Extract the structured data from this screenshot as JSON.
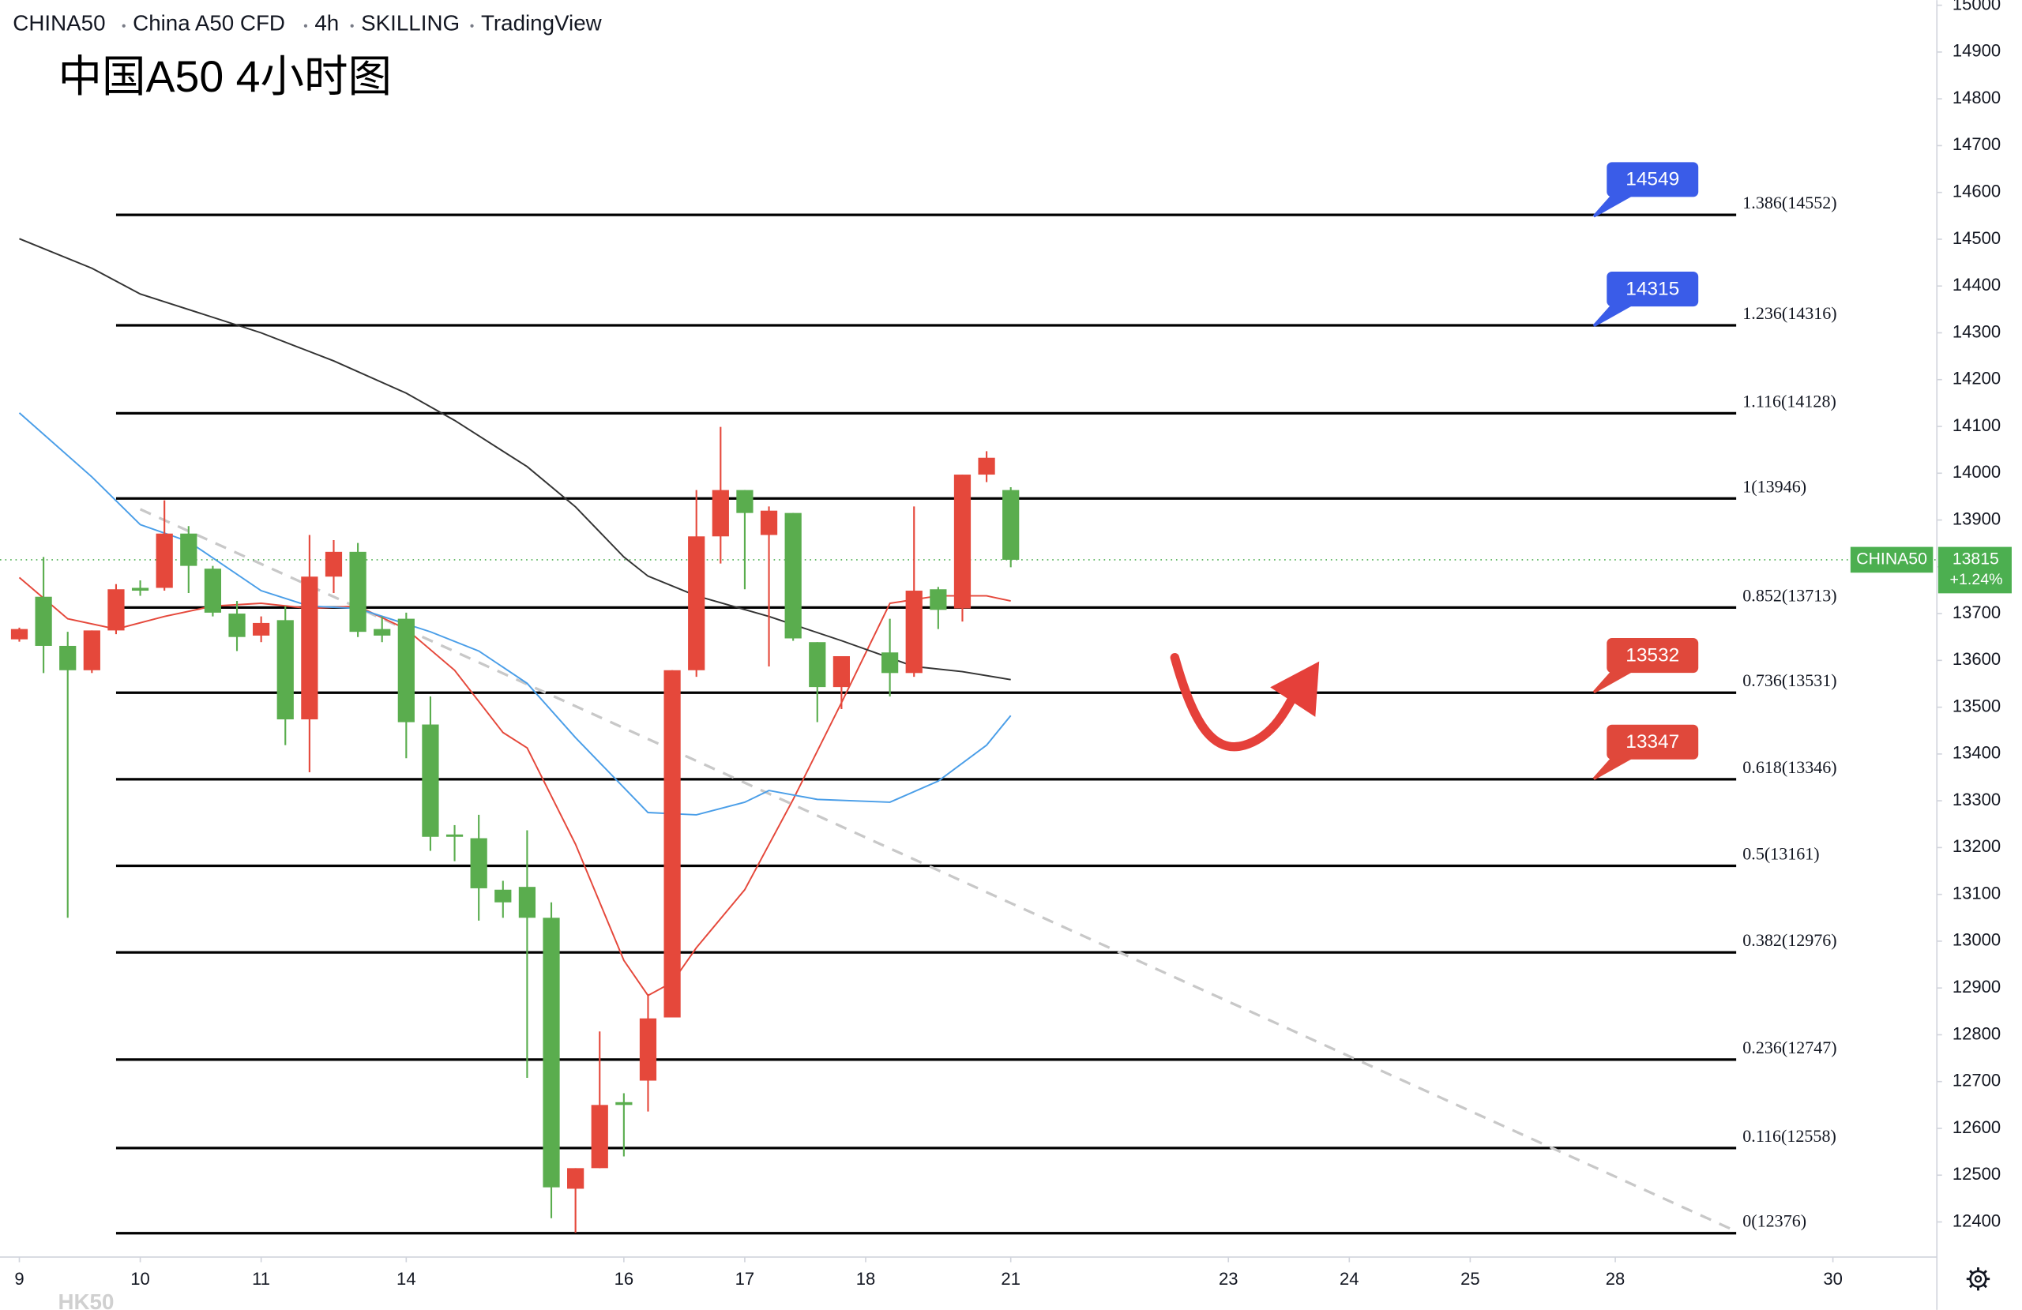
{
  "chart_data": {
    "type": "candlestick",
    "header": [
      "CHINA50",
      "China A50 CFD",
      "4h",
      "SKILLING",
      "TradingView"
    ],
    "title": "中国A50 4小时图",
    "watermark": "HK50",
    "up_color": "#e5483b",
    "down_color": "#5aad4e",
    "ylim": [
      12325,
      15011
    ],
    "yticks": [
      12400,
      12500,
      12600,
      12700,
      12800,
      12900,
      13000,
      13100,
      13200,
      13300,
      13400,
      13500,
      13600,
      13700,
      13800,
      13900,
      14000,
      14100,
      14200,
      14300,
      14400,
      14500,
      14600,
      14700,
      14800,
      14900,
      15000
    ],
    "xlim": [
      -0.8,
      79.3
    ],
    "xticks": [
      {
        "value": 0,
        "label": "9"
      },
      {
        "value": 5,
        "label": "10"
      },
      {
        "value": 10,
        "label": "11"
      },
      {
        "value": 16,
        "label": "14"
      },
      {
        "value": 25,
        "label": "16"
      },
      {
        "value": 30,
        "label": "17"
      },
      {
        "value": 35,
        "label": "18"
      },
      {
        "value": 41,
        "label": "21"
      },
      {
        "value": 50,
        "label": "23"
      },
      {
        "value": 55,
        "label": "24"
      },
      {
        "value": 60,
        "label": "25"
      },
      {
        "value": 66,
        "label": "28"
      },
      {
        "value": 75,
        "label": "30"
      }
    ],
    "candles": {
      "x": [
        0,
        1,
        2,
        3,
        4,
        5,
        6,
        7,
        8,
        9,
        10,
        11,
        12,
        13,
        14,
        15,
        16,
        17,
        18,
        19,
        20,
        21,
        22,
        23,
        24,
        25,
        26,
        27,
        28,
        29,
        30,
        31,
        32,
        33,
        34,
        36,
        37,
        38,
        39,
        40,
        41
      ],
      "open": [
        13645,
        13736,
        13631,
        13579,
        13664,
        13755,
        13755,
        13871,
        13796,
        13700,
        13653,
        13686,
        13474,
        13779,
        13832,
        13667,
        13689,
        13463,
        13228,
        13220,
        13110,
        13116,
        13050,
        12471,
        12515,
        12656,
        12702,
        12837,
        13579,
        13865,
        13964,
        13868,
        13915,
        13639,
        13543,
        13617,
        13573,
        13752,
        13711,
        13997,
        13964
      ],
      "high": [
        13670,
        13821,
        13661,
        13664,
        13763,
        13771,
        13942,
        13887,
        13802,
        13727,
        13694,
        13716,
        13868,
        13857,
        13851,
        13694,
        13702,
        13523,
        13248,
        13270,
        13129,
        13237,
        13083,
        12515,
        12807,
        12675,
        12887,
        13579,
        13964,
        14099,
        13964,
        13929,
        13915,
        13639,
        13609,
        13689,
        13929,
        13757,
        13997,
        14047,
        13970
      ],
      "low": [
        13640,
        13573,
        13050,
        13573,
        13656,
        13738,
        13749,
        13744,
        13694,
        13620,
        13639,
        13419,
        13361,
        13744,
        13650,
        13639,
        13391,
        13193,
        13171,
        13044,
        13050,
        12708,
        12408,
        12377,
        12515,
        12540,
        12636,
        12837,
        13565,
        13807,
        13752,
        13587,
        13642,
        13468,
        13496,
        13523,
        13565,
        13667,
        13683,
        13981,
        13799
      ],
      "close": [
        13667,
        13631,
        13579,
        13664,
        13752,
        13749,
        13871,
        13802,
        13702,
        13650,
        13680,
        13474,
        13779,
        13832,
        13661,
        13653,
        13468,
        13223,
        13223,
        13113,
        13083,
        13050,
        12474,
        12515,
        12650,
        12650,
        12835,
        13579,
        13865,
        13964,
        13915,
        13920,
        13647,
        13543,
        13609,
        13573,
        13749,
        13708,
        13997,
        14033,
        13815
      ]
    },
    "moving_averages": [
      {
        "color": "#e5483b",
        "x": [
          0,
          2,
          4,
          6,
          8,
          10,
          12,
          14,
          16,
          18,
          20,
          21,
          23,
          25,
          26,
          27,
          28,
          30,
          32,
          34,
          36,
          38,
          40,
          41
        ],
        "values": [
          13777,
          13689,
          13667,
          13694,
          13716,
          13722,
          13711,
          13716,
          13667,
          13579,
          13446,
          13413,
          13207,
          12959,
          12884,
          12912,
          12986,
          13110,
          13303,
          13510,
          13722,
          13738,
          13738,
          13727
        ]
      },
      {
        "color": "#4a9ee8",
        "x": [
          0,
          3,
          5,
          7,
          10,
          12,
          14,
          17,
          19,
          21,
          23,
          26,
          28,
          30,
          31,
          33,
          36,
          38,
          40,
          41
        ],
        "values": [
          14129,
          13992,
          13890,
          13854,
          13749,
          13716,
          13711,
          13661,
          13620,
          13551,
          13435,
          13275,
          13270,
          13297,
          13322,
          13303,
          13297,
          13342,
          13419,
          13482
        ]
      },
      {
        "color": "#333333",
        "x": [
          0,
          3,
          5,
          10,
          13,
          16,
          18,
          21,
          23,
          25,
          26,
          28,
          31,
          34,
          37,
          39,
          41
        ],
        "values": [
          14501,
          14438,
          14383,
          14300,
          14240,
          14171,
          14113,
          14014,
          13928,
          13821,
          13780,
          13738,
          13694,
          13642,
          13587,
          13576,
          13559
        ]
      }
    ],
    "trend_line": {
      "x": [
        5,
        71
      ],
      "values": [
        13923,
        12380
      ],
      "color": "#c8c8c8"
    },
    "fib_x": [
      4,
      71
    ],
    "fib_levels": [
      {
        "label": "1.386(14552)",
        "value": 14552
      },
      {
        "label": "1.236(14316)",
        "value": 14316
      },
      {
        "label": "1.116(14128)",
        "value": 14128
      },
      {
        "label": "1(13946)",
        "value": 13946
      },
      {
        "label": "0.852(13713)",
        "value": 13713
      },
      {
        "label": "0.736(13531)",
        "value": 13531
      },
      {
        "label": "0.618(13346)",
        "value": 13346
      },
      {
        "label": "0.5(13161)",
        "value": 13161
      },
      {
        "label": "0.382(12976)",
        "value": 12976
      },
      {
        "label": "0.236(12747)",
        "value": 12747
      },
      {
        "label": "0.116(12558)",
        "value": 12558
      },
      {
        "label": "0(12376)",
        "value": 12376
      }
    ],
    "callouts": [
      {
        "value": 14549,
        "color": "#3a5ce8"
      },
      {
        "value": 14315,
        "color": "#3a5ce8"
      },
      {
        "value": 13532,
        "color": "#e0483b"
      },
      {
        "value": 13347,
        "color": "#e0483b"
      }
    ],
    "last_price": {
      "symbol": "CHINA50",
      "value": 13815,
      "change": "+1.24%",
      "color": "#4caf50"
    }
  }
}
